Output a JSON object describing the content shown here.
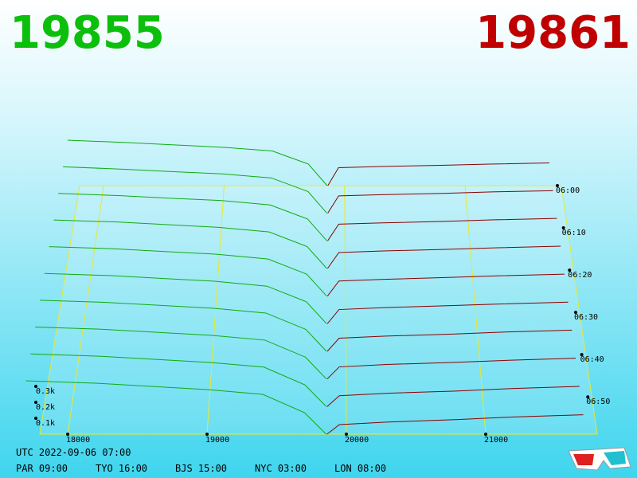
{
  "header": {
    "bid": "19855",
    "ask": "19861"
  },
  "price_axis": {
    "xlim": [
      17800,
      21800
    ],
    "ticks": [
      18000,
      19000,
      20000,
      21000
    ]
  },
  "depth_axis": {
    "ticks": [
      {
        "value": 100,
        "label": "0.1k"
      },
      {
        "value": 200,
        "label": "0.2k"
      },
      {
        "value": 300,
        "label": "0.3k"
      }
    ]
  },
  "time_axis": {
    "ticks": [
      "06:00",
      "06:10",
      "06:20",
      "06:30",
      "06:40",
      "06:50"
    ]
  },
  "depth": {
    "bid_color": "#11aa11",
    "ask_color": "#8b0000",
    "bid_prices": [
      17700,
      18200,
      18600,
      19000,
      19400,
      19700,
      19855
    ],
    "ask_prices": [
      19861,
      19950,
      20300,
      20800,
      21200,
      21700
    ],
    "bid_rows": [
      [
        380,
        360,
        340,
        320,
        290,
        180,
        0
      ],
      [
        375,
        355,
        335,
        318,
        285,
        175,
        0
      ],
      [
        370,
        352,
        332,
        315,
        280,
        170,
        0
      ],
      [
        365,
        350,
        330,
        310,
        275,
        165,
        0
      ],
      [
        360,
        345,
        325,
        305,
        270,
        160,
        0
      ],
      [
        355,
        340,
        320,
        300,
        265,
        155,
        0
      ],
      [
        350,
        335,
        315,
        295,
        262,
        150,
        0
      ],
      [
        345,
        330,
        310,
        290,
        258,
        145,
        0
      ],
      [
        340,
        325,
        305,
        285,
        255,
        140,
        0
      ],
      [
        335,
        320,
        300,
        280,
        250,
        135,
        0
      ]
    ],
    "ask_rows": [
      [
        0,
        150,
        160,
        170,
        180,
        190
      ],
      [
        0,
        140,
        150,
        160,
        172,
        182
      ],
      [
        0,
        130,
        140,
        152,
        164,
        175
      ],
      [
        0,
        120,
        132,
        144,
        156,
        168
      ],
      [
        0,
        110,
        122,
        136,
        148,
        160
      ],
      [
        0,
        100,
        114,
        128,
        140,
        152
      ],
      [
        0,
        90,
        104,
        118,
        132,
        145
      ],
      [
        0,
        80,
        96,
        110,
        124,
        138
      ],
      [
        0,
        70,
        86,
        100,
        116,
        130
      ],
      [
        0,
        60,
        76,
        92,
        108,
        122
      ]
    ]
  },
  "footer": {
    "utc": "UTC 2022-09-06 07:00",
    "cities": [
      "PAR 09:00",
      "TYO 16:00",
      "BJS 15:00",
      "NYC 03:00",
      "LON 08:00"
    ]
  }
}
